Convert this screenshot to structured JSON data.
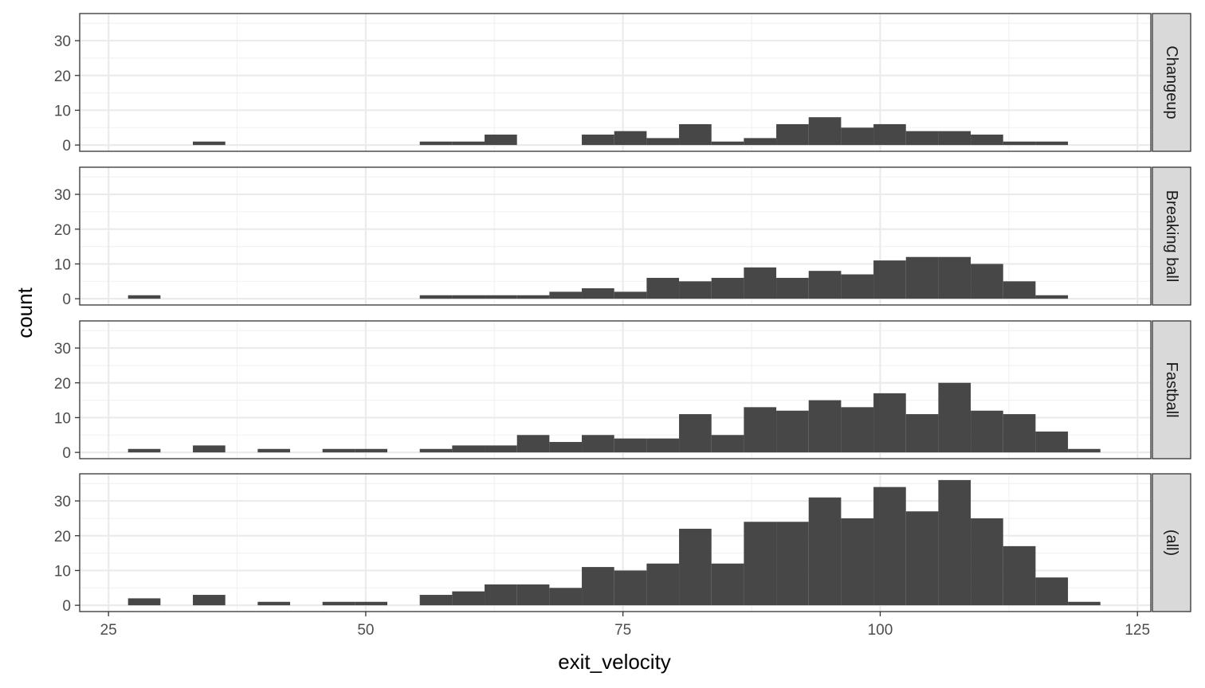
{
  "chart_data": {
    "type": "bar",
    "subtype": "faceted histogram",
    "xlabel": "exit_velocity",
    "ylabel": "count",
    "xlim": [
      22.2,
      126.3
    ],
    "ylim": [
      -1.8,
      37.8
    ],
    "x_ticks": [
      25,
      50,
      75,
      100,
      125
    ],
    "y_ticks": [
      0,
      10,
      20,
      30
    ],
    "grid": true,
    "bar_color": "#474747",
    "strip_color": "#d9d9d9",
    "bin_width": 3.15,
    "bin_start": 26.9,
    "facets": [
      {
        "label": "Changeup",
        "bins": [
          {
            "x": 33.2,
            "count": 1
          },
          {
            "x": 55.25,
            "count": 1
          },
          {
            "x": 58.4,
            "count": 1
          },
          {
            "x": 61.55,
            "count": 3
          },
          {
            "x": 70.999,
            "count": 3
          },
          {
            "x": 74.15,
            "count": 4
          },
          {
            "x": 77.3,
            "count": 2
          },
          {
            "x": 80.45,
            "count": 6
          },
          {
            "x": 83.6,
            "count": 1
          },
          {
            "x": 86.75,
            "count": 2
          },
          {
            "x": 89.9,
            "count": 6
          },
          {
            "x": 93.05,
            "count": 8
          },
          {
            "x": 96.2,
            "count": 5
          },
          {
            "x": 99.35,
            "count": 6
          },
          {
            "x": 102.5,
            "count": 4
          },
          {
            "x": 105.65,
            "count": 4
          },
          {
            "x": 108.8,
            "count": 3
          },
          {
            "x": 111.95,
            "count": 1
          },
          {
            "x": 115.1,
            "count": 1
          }
        ]
      },
      {
        "label": "Breaking ball",
        "bins": [
          {
            "x": 26.9,
            "count": 1
          },
          {
            "x": 55.25,
            "count": 1
          },
          {
            "x": 58.4,
            "count": 1
          },
          {
            "x": 61.55,
            "count": 1
          },
          {
            "x": 64.7,
            "count": 1
          },
          {
            "x": 67.85,
            "count": 2
          },
          {
            "x": 70.999,
            "count": 3
          },
          {
            "x": 74.15,
            "count": 2
          },
          {
            "x": 77.3,
            "count": 6
          },
          {
            "x": 80.45,
            "count": 5
          },
          {
            "x": 83.6,
            "count": 6
          },
          {
            "x": 86.75,
            "count": 9
          },
          {
            "x": 89.9,
            "count": 6
          },
          {
            "x": 93.05,
            "count": 8
          },
          {
            "x": 96.2,
            "count": 7
          },
          {
            "x": 99.35,
            "count": 11
          },
          {
            "x": 102.5,
            "count": 12
          },
          {
            "x": 105.65,
            "count": 12
          },
          {
            "x": 108.8,
            "count": 10
          },
          {
            "x": 111.95,
            "count": 5
          },
          {
            "x": 115.1,
            "count": 1
          }
        ]
      },
      {
        "label": "Fastball",
        "bins": [
          {
            "x": 26.9,
            "count": 1
          },
          {
            "x": 33.2,
            "count": 2
          },
          {
            "x": 39.5,
            "count": 1
          },
          {
            "x": 45.8,
            "count": 1
          },
          {
            "x": 48.95,
            "count": 1
          },
          {
            "x": 55.25,
            "count": 1
          },
          {
            "x": 58.4,
            "count": 2
          },
          {
            "x": 61.55,
            "count": 2
          },
          {
            "x": 64.7,
            "count": 5
          },
          {
            "x": 67.85,
            "count": 3
          },
          {
            "x": 70.999,
            "count": 5
          },
          {
            "x": 74.15,
            "count": 4
          },
          {
            "x": 77.3,
            "count": 4
          },
          {
            "x": 80.45,
            "count": 11
          },
          {
            "x": 83.6,
            "count": 5
          },
          {
            "x": 86.75,
            "count": 13
          },
          {
            "x": 89.9,
            "count": 12
          },
          {
            "x": 93.05,
            "count": 15
          },
          {
            "x": 96.2,
            "count": 13
          },
          {
            "x": 99.35,
            "count": 17
          },
          {
            "x": 102.5,
            "count": 11
          },
          {
            "x": 105.65,
            "count": 20
          },
          {
            "x": 108.8,
            "count": 12
          },
          {
            "x": 111.95,
            "count": 11
          },
          {
            "x": 115.1,
            "count": 6
          },
          {
            "x": 118.25,
            "count": 1
          }
        ]
      },
      {
        "label": "(all)",
        "bins": [
          {
            "x": 26.9,
            "count": 2
          },
          {
            "x": 33.2,
            "count": 3
          },
          {
            "x": 39.5,
            "count": 1
          },
          {
            "x": 45.8,
            "count": 1
          },
          {
            "x": 48.95,
            "count": 1
          },
          {
            "x": 55.25,
            "count": 3
          },
          {
            "x": 58.4,
            "count": 4
          },
          {
            "x": 61.55,
            "count": 6
          },
          {
            "x": 64.7,
            "count": 6
          },
          {
            "x": 67.85,
            "count": 5
          },
          {
            "x": 70.999,
            "count": 11
          },
          {
            "x": 74.15,
            "count": 10
          },
          {
            "x": 77.3,
            "count": 12
          },
          {
            "x": 80.45,
            "count": 22
          },
          {
            "x": 83.6,
            "count": 12
          },
          {
            "x": 86.75,
            "count": 24
          },
          {
            "x": 89.9,
            "count": 24
          },
          {
            "x": 93.05,
            "count": 31
          },
          {
            "x": 96.2,
            "count": 25
          },
          {
            "x": 99.35,
            "count": 34
          },
          {
            "x": 102.5,
            "count": 27
          },
          {
            "x": 105.65,
            "count": 36
          },
          {
            "x": 108.8,
            "count": 25
          },
          {
            "x": 111.95,
            "count": 17
          },
          {
            "x": 115.1,
            "count": 8
          },
          {
            "x": 118.25,
            "count": 1
          }
        ]
      }
    ]
  }
}
